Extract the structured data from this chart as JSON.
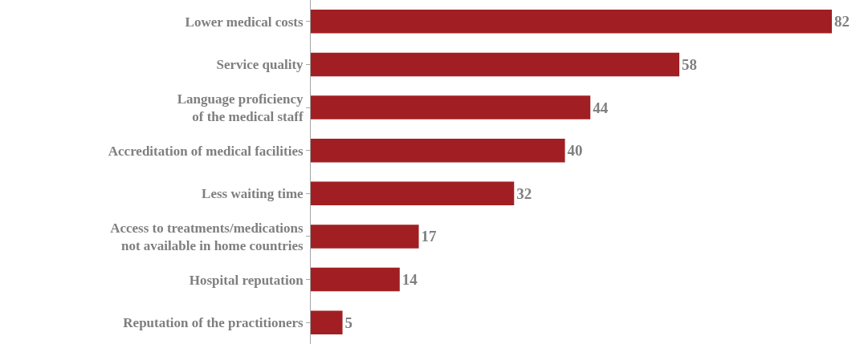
{
  "chart_data": {
    "type": "bar",
    "orientation": "horizontal",
    "data_labels": true,
    "categories": [
      "Lower medical costs",
      "Service quality",
      "Language proficiency\nof the medical staff",
      "Accreditation of medical facilities",
      "Less waiting time",
      "Access to treatments/medications\nnot available in home countries",
      "Hospital reputation",
      "Reputation of the practitioners"
    ],
    "values": [
      82,
      58,
      44,
      40,
      32,
      17,
      14,
      5
    ],
    "color": "#a11f22"
  }
}
